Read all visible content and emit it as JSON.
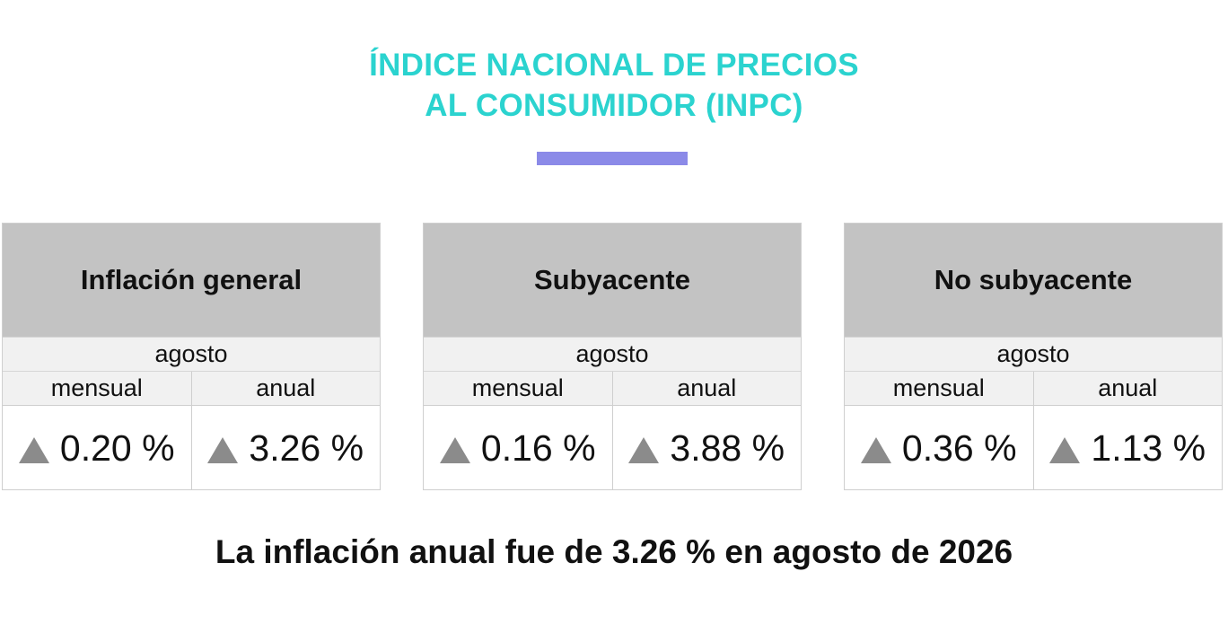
{
  "header": {
    "title_line1": "ÍNDICE NACIONAL DE PRECIOS",
    "title_line2": "AL CONSUMIDOR (INPC)",
    "accent_color": "#2bd3cf",
    "bar_color": "#8b8ae8"
  },
  "cards": [
    {
      "title": "Inflación general",
      "period": "agosto",
      "monthly_label": "mensual",
      "annual_label": "anual",
      "monthly_value": "0.20 %",
      "annual_value": "3.26 %",
      "monthly_trend": "up-triangle-icon",
      "annual_trend": "up-triangle-icon"
    },
    {
      "title": "Subyacente",
      "period": "agosto",
      "monthly_label": "mensual",
      "annual_label": "anual",
      "monthly_value": "0.16 %",
      "annual_value": "3.88 %",
      "monthly_trend": "up-triangle-icon",
      "annual_trend": "up-triangle-icon"
    },
    {
      "title": "No subyacente",
      "period": "agosto",
      "monthly_label": "mensual",
      "annual_label": "anual",
      "monthly_value": "0.36 %",
      "annual_value": "1.13 %",
      "monthly_trend": "up-triangle-icon",
      "annual_trend": "up-triangle-icon"
    }
  ],
  "summary": "La inflación anual fue de 3.26 % en agosto de 2026"
}
